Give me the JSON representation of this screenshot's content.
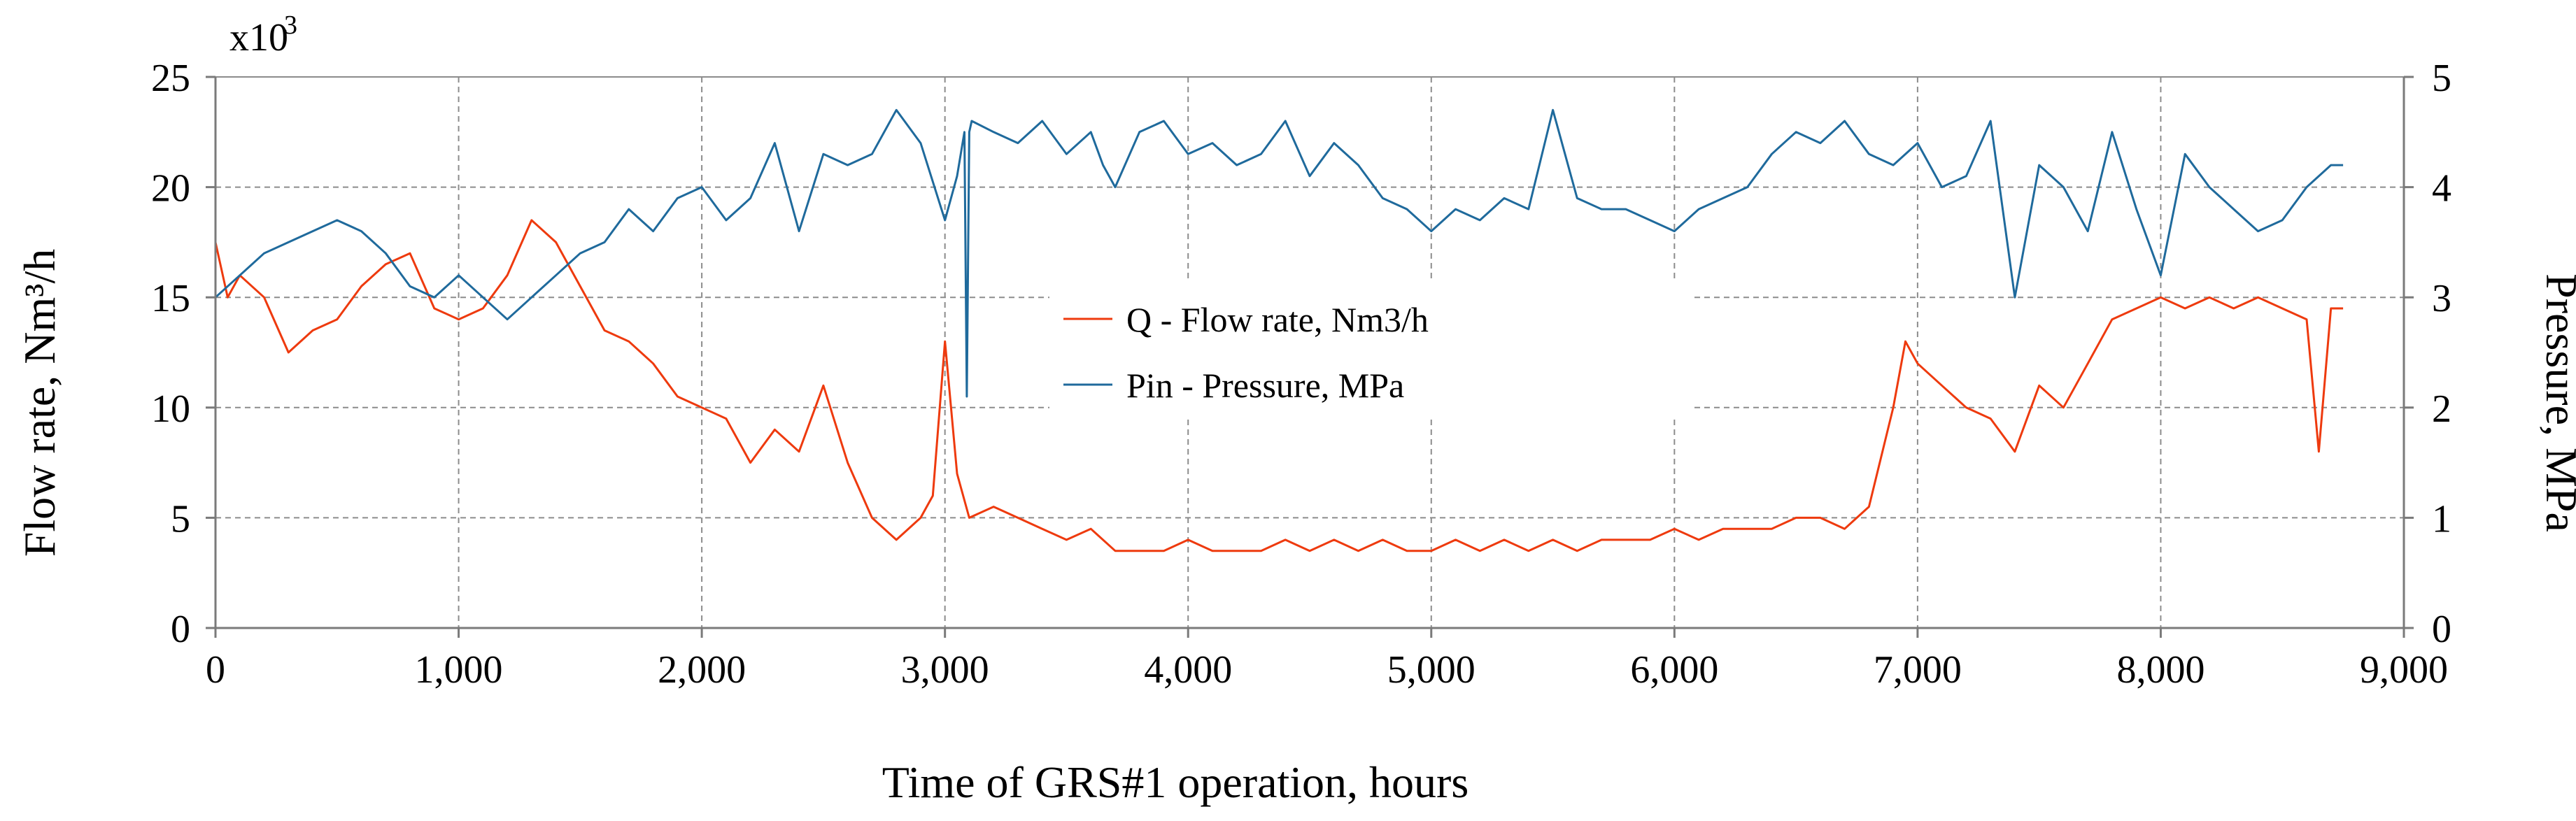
{
  "chart_data": {
    "type": "line",
    "title": "",
    "xlabel": "Time of GRS#1 operation, hours",
    "ylabel_left": "Flow rate, Nm³/h",
    "ylabel_right": "Pressure, MPa",
    "left_multiplier_base": "x10",
    "left_multiplier_exp": "3",
    "xlim": [
      0,
      9000
    ],
    "ylim_left": [
      0,
      25
    ],
    "ylim_right": [
      0,
      5
    ],
    "x_ticks": [
      0,
      1000,
      2000,
      3000,
      4000,
      5000,
      6000,
      7000,
      8000,
      9000
    ],
    "x_tick_labels": [
      "0",
      "1,000",
      "2,000",
      "3,000",
      "4,000",
      "5,000",
      "6,000",
      "7,000",
      "8,000",
      "9,000"
    ],
    "y_left_ticks": [
      0,
      5,
      10,
      15,
      20,
      25
    ],
    "y_left_tick_labels": [
      "0",
      "5",
      "10",
      "15",
      "20",
      "25"
    ],
    "y_right_ticks": [
      0,
      1,
      2,
      3,
      4,
      5
    ],
    "y_right_tick_labels": [
      "0",
      "1",
      "2",
      "3",
      "4",
      "5"
    ],
    "grid": true,
    "legend_position": "center",
    "series": [
      {
        "name": "Q - Flow rate, Nm3/h",
        "axis": "left",
        "color": "#ee3a0e",
        "x": [
          0,
          50,
          100,
          200,
          300,
          400,
          500,
          600,
          700,
          800,
          900,
          1000,
          1100,
          1200,
          1300,
          1400,
          1500,
          1600,
          1700,
          1800,
          1900,
          2000,
          2100,
          2200,
          2300,
          2400,
          2500,
          2600,
          2700,
          2800,
          2900,
          2950,
          3000,
          3050,
          3100,
          3200,
          3300,
          3400,
          3500,
          3600,
          3700,
          3800,
          3900,
          4000,
          4100,
          4200,
          4300,
          4400,
          4500,
          4600,
          4700,
          4800,
          4900,
          5000,
          5100,
          5200,
          5300,
          5400,
          5500,
          5600,
          5700,
          5800,
          5900,
          6000,
          6100,
          6200,
          6300,
          6400,
          6500,
          6600,
          6700,
          6800,
          6900,
          6950,
          7000,
          7100,
          7200,
          7300,
          7400,
          7500,
          7600,
          7700,
          7800,
          7900,
          8000,
          8100,
          8200,
          8300,
          8400,
          8500,
          8600,
          8650,
          8700,
          8750
        ],
        "values": [
          17.5,
          15,
          16,
          15,
          12.5,
          13.5,
          14,
          15.5,
          16.5,
          17,
          14.5,
          14,
          14.5,
          16,
          18.5,
          17.5,
          15.5,
          13.5,
          13,
          12,
          10.5,
          10,
          9.5,
          7.5,
          9,
          8,
          11,
          7.5,
          5,
          4,
          5,
          6,
          13,
          7,
          5,
          5.5,
          5,
          4.5,
          4,
          4.5,
          3.5,
          3.5,
          3.5,
          4,
          3.5,
          3.5,
          3.5,
          4,
          3.5,
          4,
          3.5,
          4,
          3.5,
          3.5,
          4,
          3.5,
          4,
          3.5,
          4,
          3.5,
          4,
          4,
          4,
          4.5,
          4,
          4.5,
          4.5,
          4.5,
          5,
          5,
          4.5,
          5.5,
          10,
          13,
          12,
          11,
          10,
          9.5,
          8,
          11,
          10,
          12,
          14,
          14.5,
          15,
          14.5,
          15,
          14.5,
          15,
          14.5,
          14,
          8,
          14.5,
          14.5
        ]
      },
      {
        "name": "Pin - Pressure, MPa",
        "axis": "right",
        "color": "#1f6a9c",
        "x": [
          0,
          100,
          200,
          300,
          400,
          500,
          600,
          700,
          800,
          900,
          1000,
          1100,
          1200,
          1300,
          1400,
          1500,
          1600,
          1700,
          1800,
          1900,
          2000,
          2100,
          2200,
          2300,
          2400,
          2500,
          2600,
          2700,
          2800,
          2900,
          3000,
          3050,
          3080,
          3090,
          3100,
          3110,
          3200,
          3300,
          3400,
          3500,
          3600,
          3650,
          3700,
          3800,
          3900,
          4000,
          4100,
          4200,
          4300,
          4400,
          4500,
          4600,
          4700,
          4800,
          4900,
          5000,
          5100,
          5200,
          5300,
          5400,
          5500,
          5600,
          5700,
          5800,
          5900,
          6000,
          6100,
          6200,
          6300,
          6400,
          6500,
          6600,
          6700,
          6800,
          6900,
          7000,
          7100,
          7200,
          7300,
          7400,
          7500,
          7600,
          7700,
          7800,
          7900,
          8000,
          8100,
          8200,
          8300,
          8400,
          8500,
          8600,
          8700,
          8750
        ],
        "values": [
          3.0,
          3.2,
          3.4,
          3.5,
          3.6,
          3.7,
          3.6,
          3.4,
          3.1,
          3.0,
          3.2,
          3.0,
          2.8,
          3.0,
          3.2,
          3.4,
          3.5,
          3.8,
          3.6,
          3.9,
          4.0,
          3.7,
          3.9,
          4.4,
          3.6,
          4.3,
          4.2,
          4.3,
          4.7,
          4.4,
          3.7,
          4.1,
          4.5,
          2.1,
          4.5,
          4.6,
          4.5,
          4.4,
          4.6,
          4.3,
          4.5,
          4.2,
          4.0,
          4.5,
          4.6,
          4.3,
          4.4,
          4.2,
          4.3,
          4.6,
          4.1,
          4.4,
          4.2,
          3.9,
          3.8,
          3.6,
          3.8,
          3.7,
          3.9,
          3.8,
          4.7,
          3.9,
          3.8,
          3.8,
          3.7,
          3.6,
          3.8,
          3.9,
          4.0,
          4.3,
          4.5,
          4.4,
          4.6,
          4.3,
          4.2,
          4.4,
          4.0,
          4.1,
          4.6,
          3.0,
          4.2,
          4.0,
          3.6,
          4.5,
          3.8,
          3.2,
          4.3,
          4.0,
          3.8,
          3.6,
          3.7,
          4.0,
          4.2,
          4.2
        ]
      }
    ]
  }
}
